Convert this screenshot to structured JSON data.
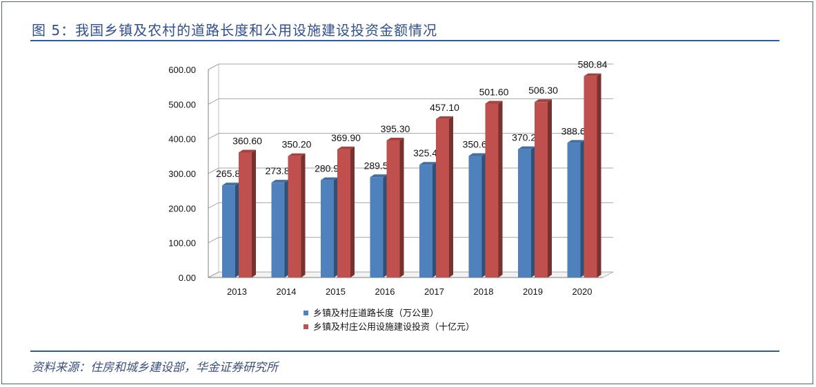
{
  "header": {
    "title": "图 5：我国乡镇及农村的道路长度和公用设施建设投资金额情况"
  },
  "footer": {
    "source": "资料来源：住房和城乡建设部，华金证券研究所"
  },
  "colors": {
    "accent": "#2e5b9a",
    "series_blue": "#4f81bd",
    "series_red": "#c0504d"
  },
  "chart_data": {
    "type": "bar",
    "categories": [
      "2013",
      "2014",
      "2015",
      "2016",
      "2017",
      "2018",
      "2019",
      "2020"
    ],
    "series": [
      {
        "name": "乡镇及村庄道路长度（万公里）",
        "values": [
          265.8,
          273.8,
          280.9,
          289.5,
          325.4,
          350.6,
          370.2,
          388.6
        ],
        "labels": [
          "265.80",
          "273.80",
          "280.90",
          "289.50",
          "325.40",
          "350.60",
          "370.20",
          "388.60"
        ],
        "color": "#4f81bd"
      },
      {
        "name": "乡镇及村庄公用设施建设投资（十亿元）",
        "values": [
          360.6,
          350.2,
          369.9,
          395.3,
          457.1,
          501.6,
          506.3,
          580.84
        ],
        "labels": [
          "360.60",
          "350.20",
          "369.90",
          "395.30",
          "457.10",
          "501.60",
          "506.30",
          "580.84"
        ],
        "color": "#c0504d"
      }
    ],
    "y_ticks": [
      "0.00",
      "100.00",
      "200.00",
      "300.00",
      "400.00",
      "500.00",
      "600.00"
    ],
    "ylim": [
      0,
      600
    ],
    "grid": true,
    "legend_position": "bottom",
    "style": "3d-column"
  }
}
